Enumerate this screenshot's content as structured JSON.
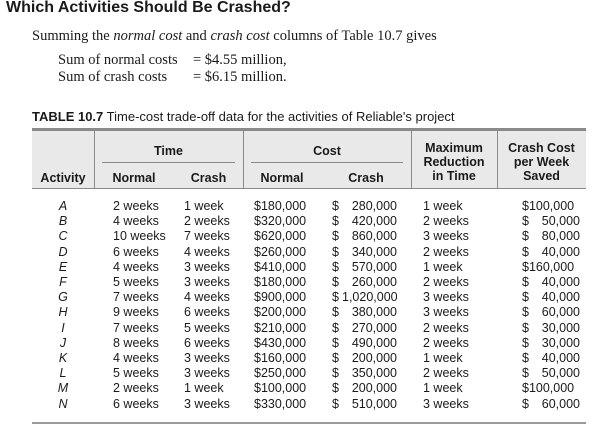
{
  "heading": "Which Activities Should Be Crashed?",
  "intro": {
    "prefix": "Summing the ",
    "em1": "normal cost",
    "middle": " and ",
    "em2": "crash cost",
    "suffix": " columns of Table 10.7 gives"
  },
  "sums": [
    {
      "label": "Sum of normal costs",
      "value": "= $4.55 million,"
    },
    {
      "label": "Sum of crash costs",
      "value": "= $6.15 million."
    }
  ],
  "table": {
    "number": "TABLE 10.7",
    "caption": "Time-cost trade-off data for the activities of Reliable's project",
    "headers": {
      "activity": "Activity",
      "time": "Time",
      "cost": "Cost",
      "time_normal": "Normal",
      "time_crash": "Crash",
      "cost_normal": "Normal",
      "cost_crash": "Crash",
      "max_reduction_1": "Maximum",
      "max_reduction_2": "Reduction",
      "max_reduction_3": "in Time",
      "crash_cost_1": "Crash Cost",
      "crash_cost_2": "per Week",
      "crash_cost_3": "Saved"
    },
    "rows": [
      {
        "activity": "A",
        "time_normal": "2 weeks",
        "time_crash": "1 week",
        "cost_normal": "$180,000",
        "cost_crash": "280,000",
        "max_reduction": "1 week",
        "crash_cost": "$100,000"
      },
      {
        "activity": "B",
        "time_normal": "4 weeks",
        "time_crash": "2 weeks",
        "cost_normal": "$320,000",
        "cost_crash": "420,000",
        "max_reduction": "2 weeks",
        "crash_cost": "50,000"
      },
      {
        "activity": "C",
        "time_normal": "10 weeks",
        "time_crash": "7 weeks",
        "cost_normal": "$620,000",
        "cost_crash": "860,000",
        "max_reduction": "3 weeks",
        "crash_cost": "80,000"
      },
      {
        "activity": "D",
        "time_normal": "6 weeks",
        "time_crash": "4 weeks",
        "cost_normal": "$260,000",
        "cost_crash": "340,000",
        "max_reduction": "2 weeks",
        "crash_cost": "40,000"
      },
      {
        "activity": "E",
        "time_normal": "4 weeks",
        "time_crash": "3 weeks",
        "cost_normal": "$410,000",
        "cost_crash": "570,000",
        "max_reduction": "1 week",
        "crash_cost": "$160,000"
      },
      {
        "activity": "F",
        "time_normal": "5 weeks",
        "time_crash": "3 weeks",
        "cost_normal": "$180,000",
        "cost_crash": "260,000",
        "max_reduction": "2 weeks",
        "crash_cost": "40,000"
      },
      {
        "activity": "G",
        "time_normal": "7 weeks",
        "time_crash": "4 weeks",
        "cost_normal": "$900,000",
        "cost_crash": "1,020,000",
        "max_reduction": "3 weeks",
        "crash_cost": "40,000"
      },
      {
        "activity": "H",
        "time_normal": "9 weeks",
        "time_crash": "6 weeks",
        "cost_normal": "$200,000",
        "cost_crash": "380,000",
        "max_reduction": "3 weeks",
        "crash_cost": "60,000"
      },
      {
        "activity": "I",
        "time_normal": "7 weeks",
        "time_crash": "5 weeks",
        "cost_normal": "$210,000",
        "cost_crash": "270,000",
        "max_reduction": "2 weeks",
        "crash_cost": "30,000"
      },
      {
        "activity": "J",
        "time_normal": "8 weeks",
        "time_crash": "6 weeks",
        "cost_normal": "$430,000",
        "cost_crash": "490,000",
        "max_reduction": "2 weeks",
        "crash_cost": "30,000"
      },
      {
        "activity": "K",
        "time_normal": "4 weeks",
        "time_crash": "3 weeks",
        "cost_normal": "$160,000",
        "cost_crash": "200,000",
        "max_reduction": "1 week",
        "crash_cost": "40,000"
      },
      {
        "activity": "L",
        "time_normal": "5 weeks",
        "time_crash": "3 weeks",
        "cost_normal": "$250,000",
        "cost_crash": "350,000",
        "max_reduction": "2 weeks",
        "crash_cost": "50,000"
      },
      {
        "activity": "M",
        "time_normal": "2 weeks",
        "time_crash": "1 week",
        "cost_normal": "$100,000",
        "cost_crash": "200,000",
        "max_reduction": "1 week",
        "crash_cost": "$100,000"
      },
      {
        "activity": "N",
        "time_normal": "6 weeks",
        "time_crash": "3 weeks",
        "cost_normal": "$330,000",
        "cost_crash": "510,000",
        "max_reduction": "3 weeks",
        "crash_cost": "60,000"
      }
    ]
  }
}
